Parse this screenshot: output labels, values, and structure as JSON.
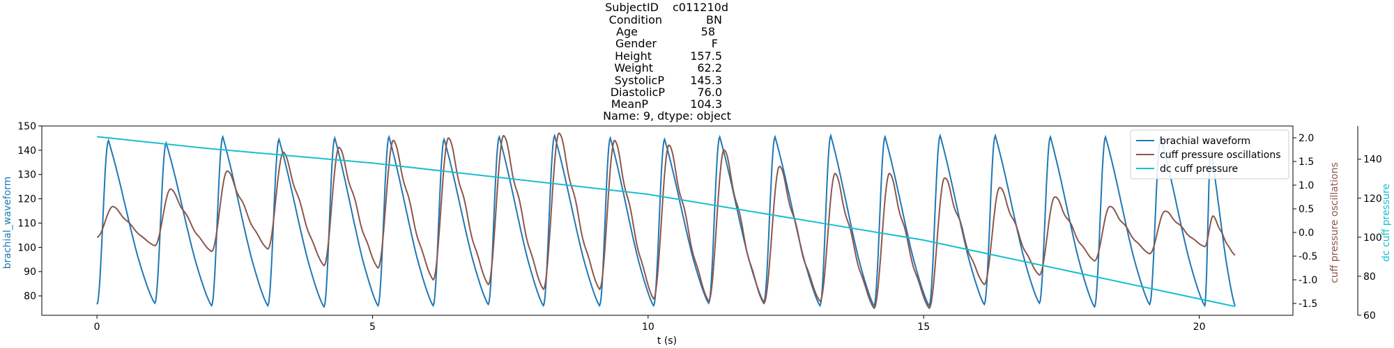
{
  "chart_data": {
    "type": "line",
    "title_lines": [
      {
        "label": "SubjectID",
        "value": "c011210d"
      },
      {
        "label": "Condition",
        "value": "BN"
      },
      {
        "label": "Age",
        "value": "58"
      },
      {
        "label": "Gender",
        "value": "F"
      },
      {
        "label": "Height",
        "value": "157.5"
      },
      {
        "label": "Weight",
        "value": "62.2"
      },
      {
        "label": "SystolicP",
        "value": "145.3"
      },
      {
        "label": "DiastolicP",
        "value": "76.0"
      },
      {
        "label": "MeanP",
        "value": "104.3"
      }
    ],
    "title_footer": "Name: 9, dtype: object",
    "xlabel": "t (s)",
    "xlim": [
      -1.0,
      21.7
    ],
    "x_ticks": [
      0,
      5,
      10,
      15,
      20
    ],
    "left_axis": {
      "label": "brachial_waveform",
      "color": "#1f77b4",
      "ylim": [
        72,
        150
      ],
      "ticks": [
        80,
        90,
        100,
        110,
        120,
        130,
        140,
        150
      ]
    },
    "right_axis_1": {
      "label": "cuff pressure oscillations",
      "color": "#8c564b",
      "ylim": [
        -1.75,
        2.25
      ],
      "ticks": [
        "-1.5",
        "-1.0",
        "-0.5",
        "0.0",
        "0.5",
        "1.0",
        "1.5",
        "2.0"
      ]
    },
    "right_axis_2": {
      "label": "dc cuff pressure",
      "color": "#17becf",
      "ylim": [
        60,
        157
      ],
      "ticks": [
        60,
        80,
        100,
        120,
        140
      ]
    },
    "legend": {
      "position": "top-right",
      "entries": [
        {
          "label": "brachial waveform",
          "color": "#1f77b4"
        },
        {
          "label": "cuff pressure oscillations",
          "color": "#8c564b"
        },
        {
          "label": "dc cuff pressure",
          "color": "#17becf"
        }
      ]
    },
    "series": [
      {
        "name": "brachial waveform",
        "axis": "left",
        "beat_onsets": [
          0.0,
          1.05,
          2.08,
          3.1,
          4.12,
          5.1,
          6.1,
          7.1,
          8.1,
          9.12,
          10.1,
          11.1,
          12.1,
          13.12,
          14.1,
          15.1,
          16.1,
          17.1,
          18.1,
          19.1,
          20.1
        ],
        "beat_minima": [
          76.5,
          77,
          76,
          76,
          75.5,
          76,
          76,
          76.5,
          76,
          76,
          76,
          77,
          77.5,
          76,
          76,
          76,
          76.5,
          77,
          75.5,
          76.5,
          76
        ],
        "beat_peaks": [
          144,
          143,
          145.5,
          144.5,
          145,
          145.5,
          144.5,
          145.5,
          146,
          145,
          144.5,
          145.5,
          145.5,
          146,
          145.5,
          146,
          146,
          145.5,
          145.5,
          145.5,
          140
        ],
        "end": {
          "t": 20.65,
          "v": 76
        }
      },
      {
        "name": "cuff pressure oscillations",
        "axis": "right_axis_1",
        "beat_onsets": [
          0.0,
          1.05,
          2.08,
          3.1,
          4.12,
          5.1,
          6.1,
          7.1,
          8.1,
          9.12,
          10.1,
          11.1,
          12.1,
          13.12,
          14.1,
          15.1,
          16.1,
          17.1,
          18.1,
          19.1,
          20.1
        ],
        "beat_minima": [
          -0.1,
          -0.28,
          -0.4,
          -0.35,
          -0.7,
          -0.75,
          -1.0,
          -1.1,
          -1.2,
          -1.2,
          -1.4,
          -1.45,
          -1.5,
          -1.45,
          -1.6,
          -1.6,
          -1.1,
          -0.9,
          -0.6,
          -0.45,
          -0.3
        ],
        "beat_peaks": [
          0.55,
          0.92,
          1.3,
          1.7,
          1.8,
          1.95,
          2.0,
          2.05,
          2.1,
          1.95,
          1.85,
          1.75,
          1.4,
          1.25,
          1.25,
          1.15,
          0.95,
          0.75,
          0.55,
          0.45,
          0.35
        ],
        "end": {
          "t": 20.65,
          "v": -0.48
        }
      },
      {
        "name": "dc cuff pressure",
        "axis": "right_axis_2",
        "points": [
          {
            "t": 0.0,
            "v": 151.5
          },
          {
            "t": 2.0,
            "v": 145.5
          },
          {
            "t": 5.0,
            "v": 138.0
          },
          {
            "t": 10.0,
            "v": 122.0
          },
          {
            "t": 15.0,
            "v": 98.5
          },
          {
            "t": 20.65,
            "v": 64.5
          }
        ]
      }
    ]
  }
}
